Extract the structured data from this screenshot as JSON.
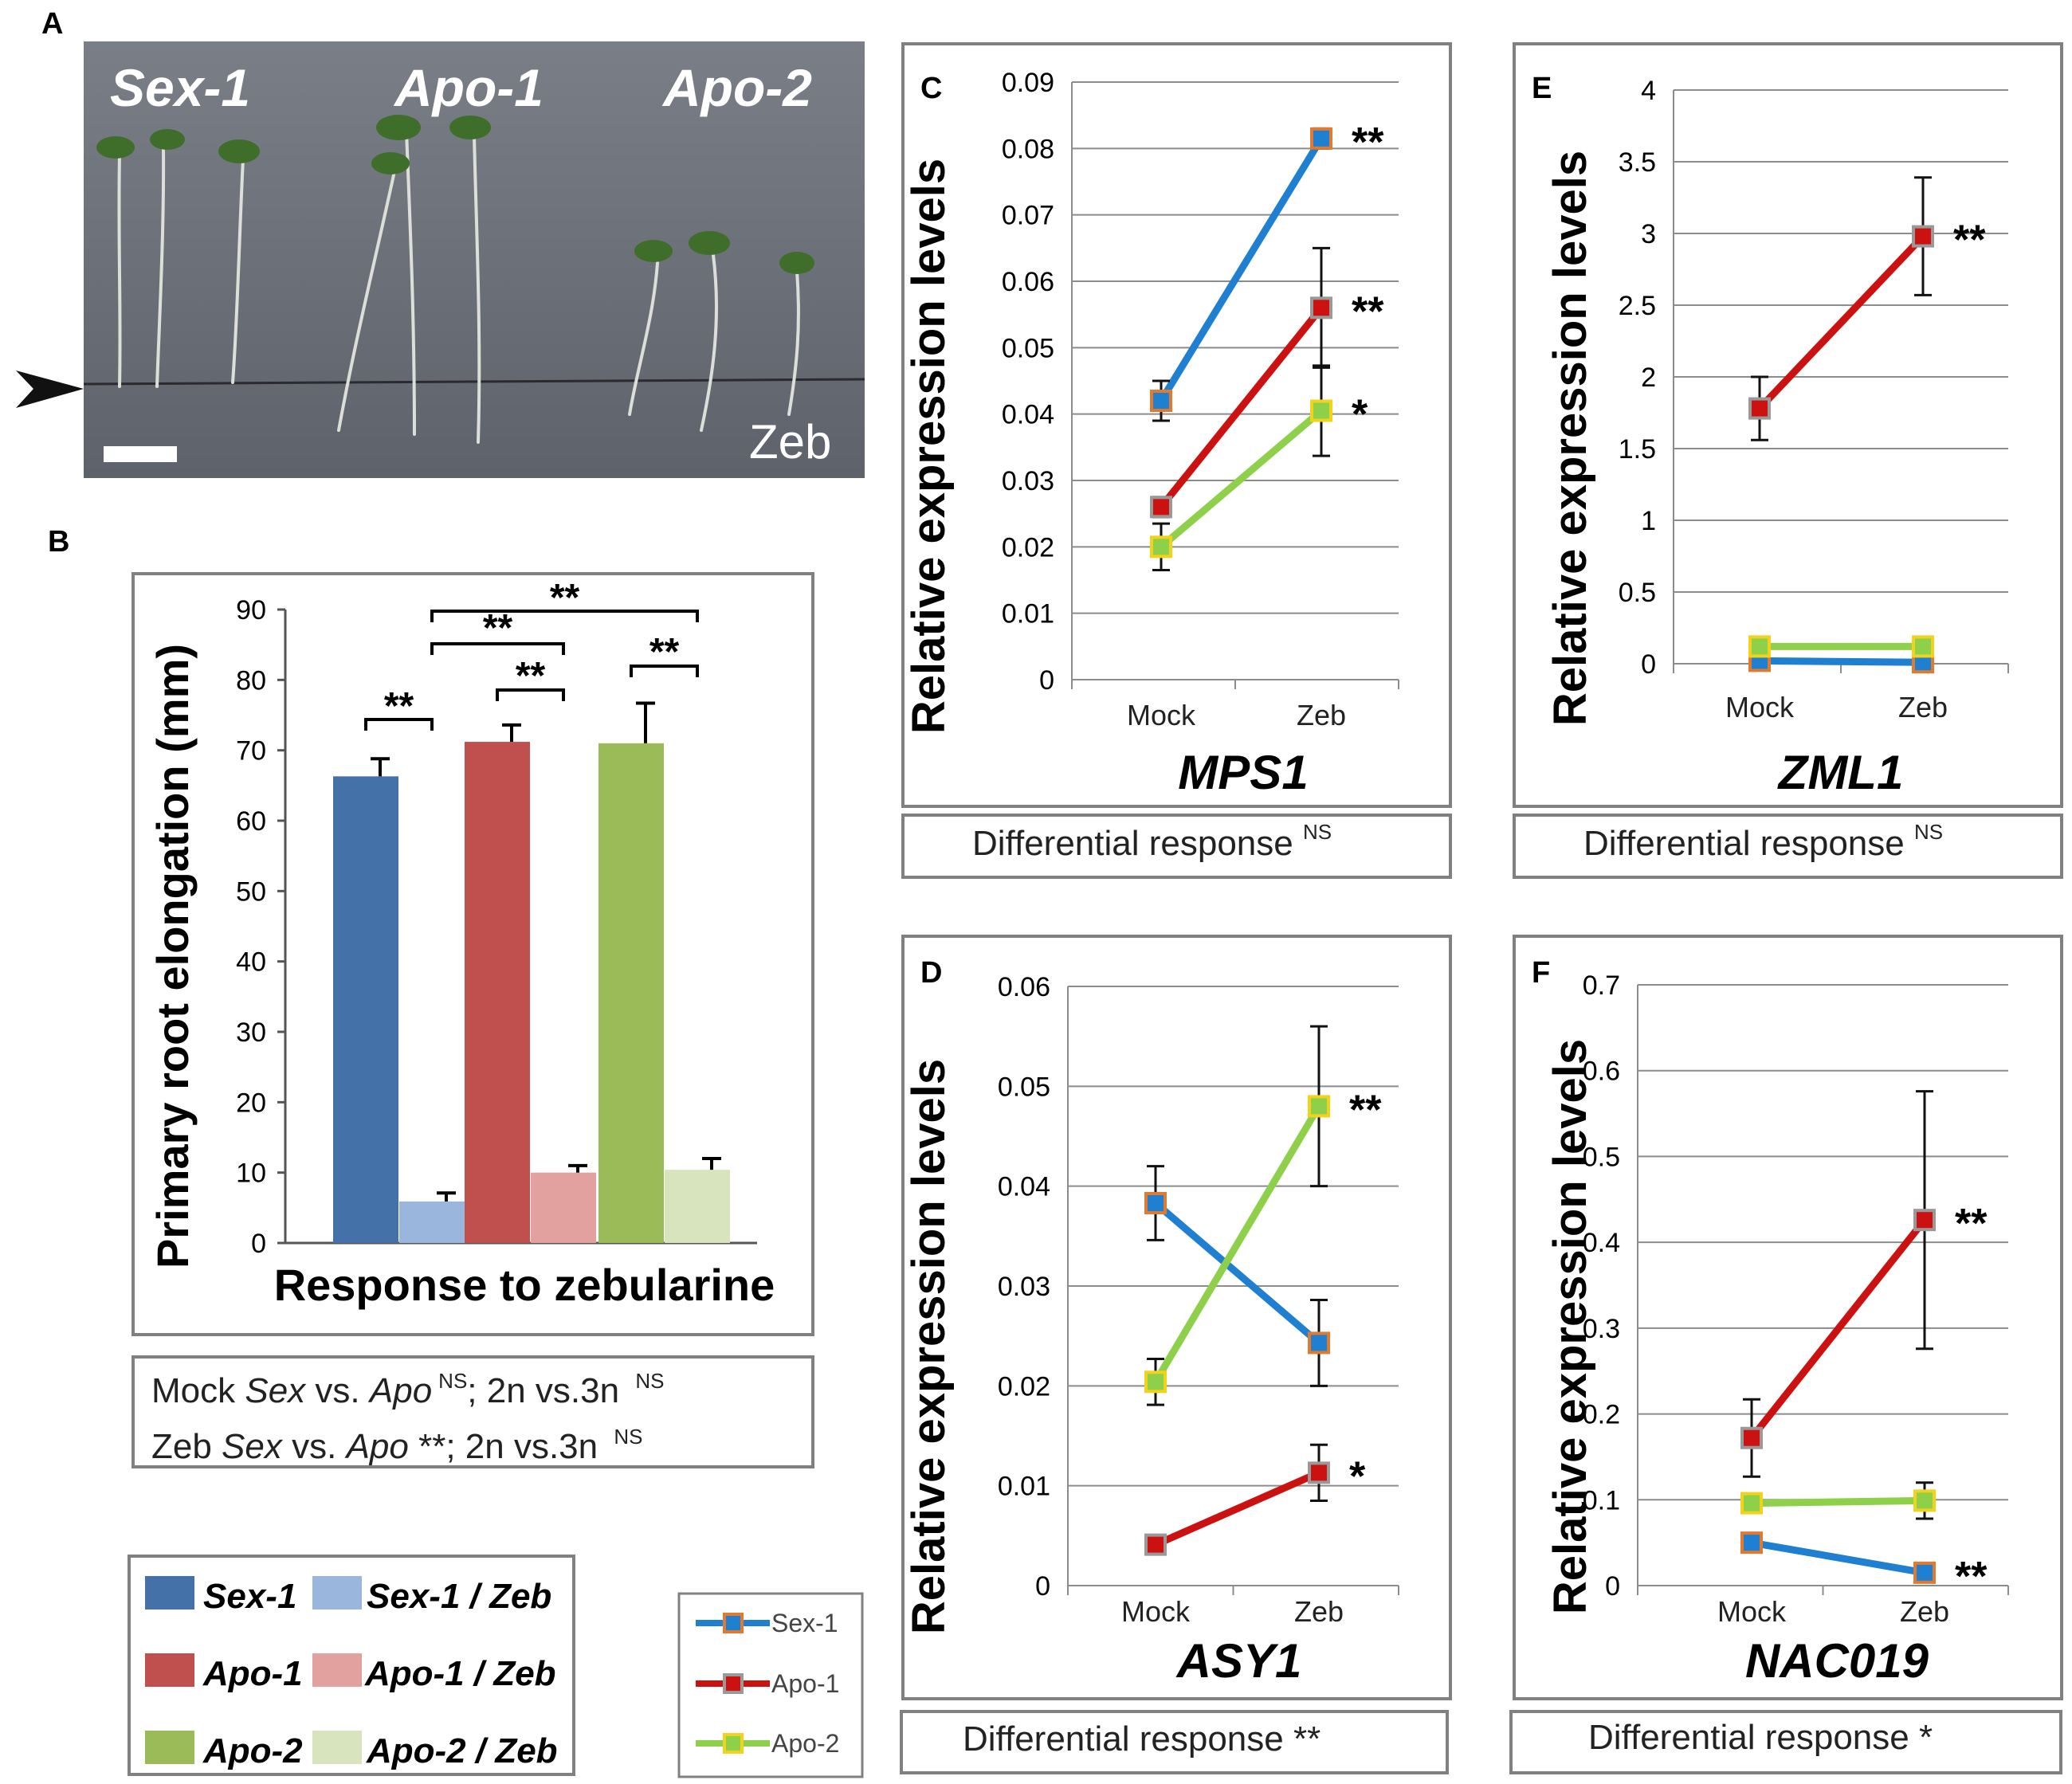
{
  "colors": {
    "sex1": "#4472a8",
    "sex1_zeb": "#9bb6dc",
    "apo1": "#c0504d",
    "apo1_zeb": "#e2a09e",
    "apo2": "#9bbb59",
    "apo2_zeb": "#d7e4bd",
    "line_sex1": "#1f7fd0",
    "line_apo1": "#cc1111",
    "line_apo2": "#8fd04a",
    "marker_edge_sex1": "#e07a30",
    "marker_edge_apo1": "#999999",
    "marker_edge_apo2": "#f2d21b",
    "photo_bg": "#6b6f78"
  },
  "panel_labels": {
    "a": "A",
    "b": "B",
    "c": "C",
    "d": "D",
    "e": "E",
    "f": "F"
  },
  "photo": {
    "labels": [
      "Sex-1",
      "Apo-1",
      "Apo-2"
    ],
    "treatment": "Zeb",
    "arrow_icon": "arrowhead-icon",
    "scale_bar_icon": "scale-bar-icon"
  },
  "panel_b": {
    "stats": {
      "mock": {
        "prefix": "Mock ",
        "sex": "Sex",
        "vs": " vs. ",
        "apo": "Apo",
        "sup1": "NS",
        "mid": "; 2n vs.3n ",
        "sup2": "NS"
      },
      "zeb": {
        "prefix": "Zeb ",
        "sex": "Sex",
        "vs": " vs. ",
        "apo": "Apo",
        "stars": " **",
        "mid": "; 2n vs.3n ",
        "sup2": "NS"
      }
    }
  },
  "legend_b": {
    "items": [
      {
        "label": "Sex-1",
        "color": "#4472a8"
      },
      {
        "label": "Sex-1 / Zeb",
        "color": "#9bb6dc"
      },
      {
        "label": "Apo-1",
        "color": "#c0504d"
      },
      {
        "label": "Apo-1 / Zeb",
        "color": "#e2a09e"
      },
      {
        "label": "Apo-2",
        "color": "#9bbb59"
      },
      {
        "label": "Apo-2 / Zeb",
        "color": "#d7e4bd"
      }
    ]
  },
  "legend_lines": {
    "items": [
      {
        "label": "Sex-1"
      },
      {
        "label": "Apo-1"
      },
      {
        "label": "Apo-2"
      }
    ]
  },
  "chart_data": [
    {
      "id": "B",
      "type": "bar",
      "title": "",
      "xlabel": "Response to zebularine",
      "ylabel": "Primary root elongation (mm)",
      "ylim": [
        0,
        90
      ],
      "yticks": [
        "0",
        "10",
        "20",
        "30",
        "40",
        "50",
        "60",
        "70",
        "80",
        "90"
      ],
      "categories": [
        "Sex-1",
        "Sex-1 / Zeb",
        "Apo-1",
        "Apo-1 / Zeb",
        "Apo-2",
        "Apo-2 / Zeb"
      ],
      "values": [
        66.3,
        5.9,
        71.2,
        10.0,
        71.0,
        10.4
      ],
      "errors": [
        2.5,
        1.2,
        2.4,
        1.0,
        5.7,
        1.6
      ],
      "significance": [
        {
          "from": 0,
          "to": 1,
          "label": "**"
        },
        {
          "from": 2,
          "to": 3,
          "label": "**"
        },
        {
          "from": 4,
          "to": 5,
          "label": "**"
        },
        {
          "from": 1,
          "to": 3,
          "label": "**"
        },
        {
          "from": 1,
          "to": 5,
          "label": "**"
        }
      ]
    },
    {
      "id": "C",
      "type": "line",
      "title": "MPS1",
      "ylabel": "Relative expression levels",
      "categories": [
        "Mock",
        "Zeb"
      ],
      "ylim": [
        0,
        0.09
      ],
      "yticks": [
        "0",
        "0.01",
        "0.02",
        "0.03",
        "0.04",
        "0.05",
        "0.06",
        "0.07",
        "0.08",
        "0.09"
      ],
      "series": [
        {
          "name": "Sex-1",
          "values": [
            0.042,
            0.0815
          ],
          "errors": [
            0.003,
            0.0015
          ],
          "star": "**"
        },
        {
          "name": "Apo-1",
          "values": [
            0.026,
            0.056
          ],
          "errors": [
            0.0015,
            0.009
          ],
          "star": "**"
        },
        {
          "name": "Apo-2",
          "values": [
            0.02,
            0.0405
          ],
          "errors": [
            0.0035,
            0.0068
          ],
          "star": "*"
        }
      ],
      "footer": "Differential response",
      "footer_sig": "NS"
    },
    {
      "id": "D",
      "type": "line",
      "title": "ASY1",
      "ylabel": "Relative expression levels",
      "categories": [
        "Mock",
        "Zeb"
      ],
      "ylim": [
        0,
        0.06
      ],
      "yticks": [
        "0",
        "0.01",
        "0.02",
        "0.03",
        "0.04",
        "0.05",
        "0.06"
      ],
      "series": [
        {
          "name": "Sex-1",
          "values": [
            0.0383,
            0.0243
          ],
          "errors": [
            0.0037,
            0.0043
          ],
          "star": ""
        },
        {
          "name": "Apo-1",
          "values": [
            0.0041,
            0.0113
          ],
          "errors": [
            0.0,
            0.0028
          ],
          "star": "*"
        },
        {
          "name": "Apo-2",
          "values": [
            0.0204,
            0.048
          ],
          "errors": [
            0.0023,
            0.008
          ],
          "star": "**"
        }
      ],
      "footer": "Differential response",
      "footer_sig": "**"
    },
    {
      "id": "E",
      "type": "line",
      "title": "ZML1",
      "ylabel": "Relative expression levels",
      "categories": [
        "Mock",
        "Zeb"
      ],
      "ylim": [
        0,
        4
      ],
      "yticks": [
        "0",
        "0.5",
        "1",
        "1.5",
        "2",
        "2.5",
        "3",
        "3.5",
        "4"
      ],
      "series": [
        {
          "name": "Sex-1",
          "values": [
            0.02,
            0.01
          ],
          "errors": [
            0.0,
            0.0
          ],
          "star": ""
        },
        {
          "name": "Apo-1",
          "values": [
            1.78,
            2.98
          ],
          "errors": [
            0.22,
            0.41
          ],
          "star": "**"
        },
        {
          "name": "Apo-2",
          "values": [
            0.12,
            0.12
          ],
          "errors": [
            0.0,
            0.0
          ],
          "star": ""
        }
      ],
      "footer": "Differential response",
      "footer_sig": "NS"
    },
    {
      "id": "F",
      "type": "line",
      "title": "NAC019",
      "ylabel": "Relative expression levels",
      "categories": [
        "Mock",
        "Zeb"
      ],
      "ylim": [
        0,
        0.7
      ],
      "yticks": [
        "0",
        "0.1",
        "0.2",
        "0.3",
        "0.4",
        "0.5",
        "0.6",
        "0.7"
      ],
      "series": [
        {
          "name": "Sex-1",
          "values": [
            0.05,
            0.015
          ],
          "errors": [
            0.0,
            0.0
          ],
          "star": "**"
        },
        {
          "name": "Apo-1",
          "values": [
            0.172,
            0.426
          ],
          "errors": [
            0.045,
            0.15
          ],
          "star": "**"
        },
        {
          "name": "Apo-2",
          "values": [
            0.096,
            0.099
          ],
          "errors": [
            0.0,
            0.021
          ],
          "star": ""
        }
      ],
      "footer": "Differential response",
      "footer_sig": "*"
    }
  ]
}
